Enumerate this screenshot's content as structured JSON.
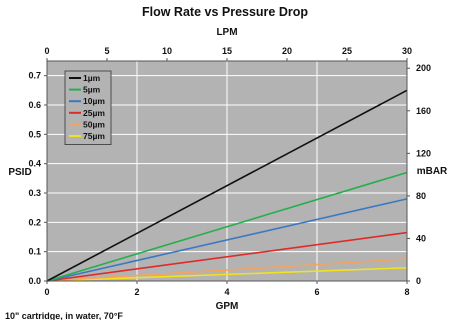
{
  "chart_data": {
    "type": "line",
    "title": "Flow Rate vs Pressure Drop",
    "footnote": "10\" cartridge, in water, 70°F",
    "xlabel": "GPM",
    "x_top_label": "LPM",
    "ylabel": "PSID",
    "y_right_label": "mBAR",
    "xlim": [
      0,
      8
    ],
    "ylim": [
      0,
      0.75
    ],
    "x_ticks": [
      "0",
      "2",
      "4",
      "6",
      "8"
    ],
    "x_tick_values": [
      0,
      2,
      4,
      6,
      8
    ],
    "x_top_ticks": [
      "0",
      "5",
      "10",
      "15",
      "20",
      "25",
      "30"
    ],
    "x_top_tick_values": [
      0,
      5,
      10,
      15,
      20,
      25,
      30
    ],
    "x_top_lim": [
      0,
      30
    ],
    "y_ticks": [
      "0.0",
      "0.1",
      "0.2",
      "0.3",
      "0.4",
      "0.5",
      "0.6",
      "0.7"
    ],
    "y_tick_values": [
      0,
      0.1,
      0.2,
      0.3,
      0.4,
      0.5,
      0.6,
      0.7
    ],
    "y_right_ticks": [
      "0",
      "40",
      "80",
      "120",
      "160",
      "200"
    ],
    "y_right_tick_values": [
      0,
      40,
      80,
      120,
      160,
      200
    ],
    "y_right_lim": [
      0,
      206.8
    ],
    "grid": true,
    "legend_position": "top-left",
    "plot_background": "#b3b3b3",
    "grid_color": "#ffffff",
    "series": [
      {
        "name": "1µm",
        "color": "#111111",
        "x": [
          0,
          8
        ],
        "values": [
          0,
          0.65
        ]
      },
      {
        "name": "5µm",
        "color": "#22b04b",
        "x": [
          0,
          8
        ],
        "values": [
          0,
          0.37
        ]
      },
      {
        "name": "10µm",
        "color": "#3a78c4",
        "x": [
          0,
          8
        ],
        "values": [
          0,
          0.28
        ]
      },
      {
        "name": "25µm",
        "color": "#e02a2a",
        "x": [
          0,
          8
        ],
        "values": [
          0,
          0.165
        ]
      },
      {
        "name": "50µm",
        "color": "#f4a460",
        "x": [
          0,
          8
        ],
        "values": [
          0,
          0.075
        ]
      },
      {
        "name": "75µm",
        "color": "#f2e21e",
        "x": [
          0,
          8
        ],
        "values": [
          0,
          0.045
        ]
      }
    ]
  }
}
